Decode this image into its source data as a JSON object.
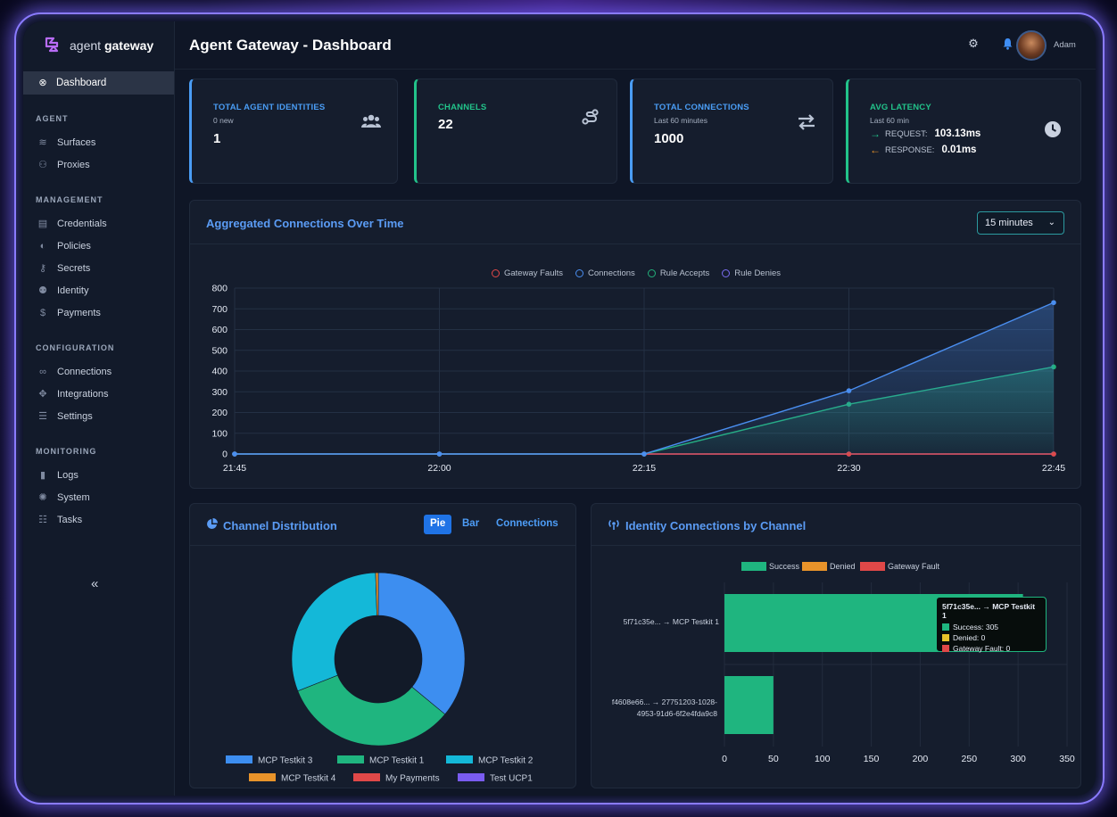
{
  "app": {
    "logo_word1": "agent",
    "logo_word2": "gateway",
    "page_title": "Agent Gateway - Dashboard",
    "user_name": "Adam"
  },
  "sidebar": {
    "active": {
      "label": "Dashboard",
      "icon": "dashboard-icon"
    },
    "sections": [
      {
        "title": "AGENT",
        "items": [
          {
            "label": "Surfaces",
            "icon": "layers-icon"
          },
          {
            "label": "Proxies",
            "icon": "network-icon"
          }
        ]
      },
      {
        "title": "MANAGEMENT",
        "items": [
          {
            "label": "Credentials",
            "icon": "id-card-icon"
          },
          {
            "label": "Policies",
            "icon": "shield-icon"
          },
          {
            "label": "Secrets",
            "icon": "key-icon"
          },
          {
            "label": "Identity",
            "icon": "users-icon"
          },
          {
            "label": "Payments",
            "icon": "dollar-icon"
          }
        ]
      },
      {
        "title": "CONFIGURATION",
        "items": [
          {
            "label": "Connections",
            "icon": "link-icon"
          },
          {
            "label": "Integrations",
            "icon": "puzzle-icon"
          },
          {
            "label": "Settings",
            "icon": "sliders-icon"
          }
        ]
      },
      {
        "title": "MONITORING",
        "items": [
          {
            "label": "Logs",
            "icon": "file-icon"
          },
          {
            "label": "System",
            "icon": "cog-icon"
          },
          {
            "label": "Tasks",
            "icon": "list-icon"
          }
        ]
      }
    ],
    "collapse_label": "«"
  },
  "stats": [
    {
      "title": "TOTAL AGENT IDENTITIES",
      "sub": "0 new",
      "value": "1",
      "icon": "users-icon",
      "color": "#4a9df5"
    },
    {
      "title": "CHANNELS",
      "sub": "",
      "value": "22",
      "icon": "channels-icon",
      "color": "#22c38a"
    },
    {
      "title": "TOTAL CONNECTIONS",
      "sub": "Last 60 minutes",
      "value": "1000",
      "icon": "transfer-icon",
      "color": "#4a9df5"
    },
    {
      "title": "AVG LATENCY",
      "sub": "Last 60 min",
      "icon": "clock-icon",
      "color": "#22c38a",
      "request_label": "REQUEST:",
      "request_value": "103.13ms",
      "response_label": "RESPONSE:",
      "response_value": "0.01ms"
    }
  ],
  "line_panel": {
    "title": "Aggregated Connections Over Time",
    "range_select": "15 minutes",
    "legend": [
      {
        "name": "Gateway Faults",
        "color": "#e04848"
      },
      {
        "name": "Connections",
        "color": "#4a8ef0"
      },
      {
        "name": "Rule Accepts",
        "color": "#22b07a"
      },
      {
        "name": "Rule Denies",
        "color": "#7a6cf0"
      }
    ]
  },
  "donut_panel": {
    "title": "Channel Distribution",
    "tabs": [
      "Pie",
      "Bar",
      "Connections"
    ],
    "active_tab": "Pie"
  },
  "bar_panel": {
    "title": "Identity Connections by Channel",
    "tooltip": {
      "title": "5f71c35e... → MCP Testkit 1",
      "rows": [
        "Success: 305",
        "Denied: 0",
        "Gateway Fault: 0"
      ]
    }
  },
  "chart_data": [
    {
      "type": "line",
      "x": [
        "21:45",
        "22:00",
        "22:15",
        "22:30",
        "22:45"
      ],
      "ylim": [
        0,
        800
      ],
      "yticks": [
        0,
        100,
        200,
        300,
        400,
        500,
        600,
        700,
        800
      ],
      "series": [
        {
          "name": "Gateway Faults",
          "color": "#e04848",
          "values": [
            0,
            0,
            0,
            0,
            0
          ]
        },
        {
          "name": "Connections",
          "color": "#4a8ef0",
          "values": [
            0,
            0,
            0,
            305,
            730
          ]
        },
        {
          "name": "Rule Accepts",
          "color": "#22b07a",
          "values": [
            0,
            0,
            0,
            240,
            420
          ]
        },
        {
          "name": "Rule Denies",
          "color": "#7a6cf0",
          "values": [
            0,
            0,
            0,
            0,
            0
          ]
        }
      ]
    },
    {
      "type": "pie",
      "labels": [
        "MCP Testkit 3",
        "MCP Testkit 1",
        "MCP Testkit 2",
        "MCP Testkit 4",
        "My Payments",
        "Test UCP1"
      ],
      "values": [
        36,
        33,
        30.5,
        0.5,
        0,
        0
      ],
      "colors": [
        "#3d8ef0",
        "#1fb57f",
        "#14b8d8",
        "#e8932a",
        "#e04848",
        "#7a5cf0"
      ]
    },
    {
      "type": "bar",
      "orientation": "horizontal",
      "categories": [
        "5f71c35e... → MCP Testkit 1",
        "f4608e66... → 27751203-1028-4953-91d6-6f2e4fda9c8"
      ],
      "series": [
        {
          "name": "Success",
          "color": "#1fb57f",
          "values": [
            305,
            50
          ]
        },
        {
          "name": "Denied",
          "color": "#e8932a",
          "values": [
            0,
            0
          ]
        },
        {
          "name": "Gateway Fault",
          "color": "#e04848",
          "values": [
            0,
            0
          ]
        }
      ],
      "xlim": [
        0,
        350
      ],
      "xticks": [
        0,
        50,
        100,
        150,
        200,
        250,
        300,
        350
      ]
    }
  ]
}
